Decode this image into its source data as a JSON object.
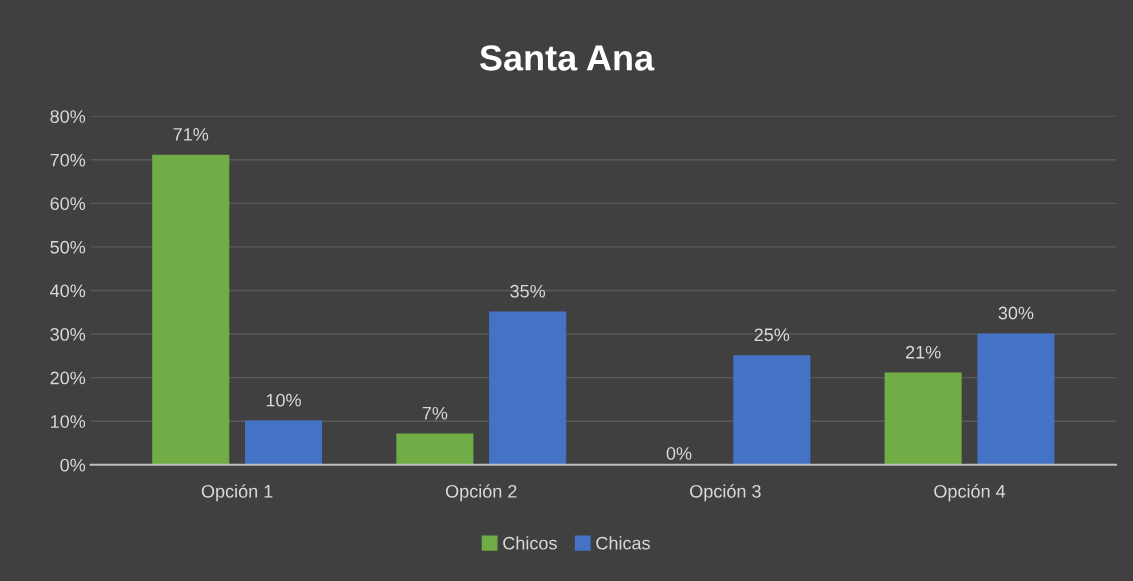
{
  "chart_data": {
    "type": "bar",
    "title": "Santa Ana",
    "categories": [
      "Opción 1",
      "Opción 2",
      "Opción 3",
      "Opción 4"
    ],
    "series": [
      {
        "name": "Chicos",
        "color": "#70ad47",
        "values": [
          71,
          7,
          0,
          21
        ],
        "value_labels": [
          "71%",
          "7%",
          "0%",
          "21%"
        ]
      },
      {
        "name": "Chicas",
        "color": "#4472c4",
        "values": [
          10,
          35,
          25,
          30
        ],
        "value_labels": [
          "10%",
          "35%",
          "25%",
          "30%"
        ]
      }
    ],
    "ylim": [
      0,
      80
    ],
    "yticks": [
      {
        "value": 0,
        "label": "0%"
      },
      {
        "value": 10,
        "label": "10%"
      },
      {
        "value": 20,
        "label": "20%"
      },
      {
        "value": 30,
        "label": "30%"
      },
      {
        "value": 40,
        "label": "40%"
      },
      {
        "value": 50,
        "label": "50%"
      },
      {
        "value": 60,
        "label": "60%"
      },
      {
        "value": 70,
        "label": "70%"
      },
      {
        "value": 80,
        "label": "80%"
      }
    ],
    "grid": "y",
    "legend": "bottom"
  }
}
